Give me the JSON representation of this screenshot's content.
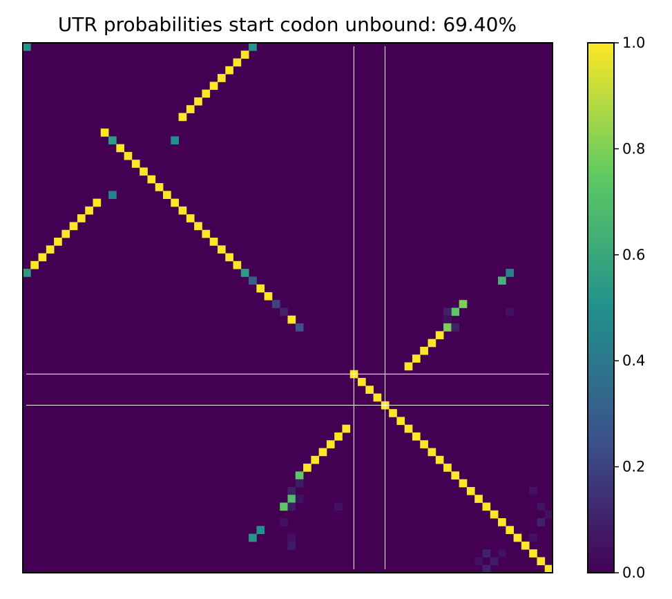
{
  "chart_data": {
    "type": "heatmap",
    "title": "UTR probabilities start codon unbound: 69.40%",
    "xlabel": "",
    "ylabel": "",
    "grid_size": 68,
    "colormap": "viridis",
    "colormap_stops": [
      "#440154",
      "#3b528b",
      "#21918c",
      "#5ec962",
      "#fde725"
    ],
    "colorbar": {
      "range": [
        0,
        1
      ],
      "ticks": [
        0.0,
        0.2,
        0.4,
        0.6,
        0.8,
        1.0
      ],
      "tick_labels": [
        "0.0",
        "0.2",
        "0.4",
        "0.6",
        "0.8",
        "1.0"
      ]
    },
    "guide_lines": {
      "rows": [
        42.5,
        46.5
      ],
      "cols": [
        42.5,
        46.5
      ],
      "color": "#ffffff"
    },
    "cells": [
      [
        0,
        0,
        0.52
      ],
      [
        0,
        29,
        0.52
      ],
      [
        1,
        28,
        1.0
      ],
      [
        2,
        27,
        1.0
      ],
      [
        3,
        26,
        1.0
      ],
      [
        4,
        25,
        1.0
      ],
      [
        5,
        24,
        1.0
      ],
      [
        6,
        23,
        1.0
      ],
      [
        7,
        22,
        1.0
      ],
      [
        8,
        21,
        1.0
      ],
      [
        9,
        20,
        1.0
      ],
      [
        11,
        10,
        1.0
      ],
      [
        12,
        11,
        0.55
      ],
      [
        12,
        19,
        0.5
      ],
      [
        13,
        12,
        1.0
      ],
      [
        14,
        13,
        1.0
      ],
      [
        15,
        14,
        1.0
      ],
      [
        16,
        15,
        1.0
      ],
      [
        17,
        16,
        1.0
      ],
      [
        18,
        17,
        1.0
      ],
      [
        19,
        18,
        1.0
      ],
      [
        19,
        11,
        0.45
      ],
      [
        20,
        19,
        1.0
      ],
      [
        20,
        9,
        1.0
      ],
      [
        21,
        20,
        1.0
      ],
      [
        21,
        8,
        1.0
      ],
      [
        22,
        21,
        1.0
      ],
      [
        22,
        7,
        1.0
      ],
      [
        23,
        22,
        1.0
      ],
      [
        23,
        6,
        1.0
      ],
      [
        24,
        23,
        1.0
      ],
      [
        24,
        5,
        1.0
      ],
      [
        25,
        24,
        1.0
      ],
      [
        25,
        4,
        1.0
      ],
      [
        26,
        25,
        1.0
      ],
      [
        26,
        3,
        1.0
      ],
      [
        27,
        26,
        1.0
      ],
      [
        27,
        2,
        1.0
      ],
      [
        28,
        27,
        1.0
      ],
      [
        28,
        1,
        1.0
      ],
      [
        29,
        28,
        0.55
      ],
      [
        29,
        0,
        0.55
      ],
      [
        29,
        62,
        0.45
      ],
      [
        30,
        29,
        0.3
      ],
      [
        30,
        61,
        0.65
      ],
      [
        31,
        30,
        1.0
      ],
      [
        32,
        31,
        1.0
      ],
      [
        33,
        32,
        0.2
      ],
      [
        33,
        56,
        0.8
      ],
      [
        34,
        33,
        0.1
      ],
      [
        34,
        55,
        0.75
      ],
      [
        34,
        54,
        0.1
      ],
      [
        34,
        62,
        0.05
      ],
      [
        35,
        34,
        1.0
      ],
      [
        35,
        54,
        0.05
      ],
      [
        36,
        35,
        0.25
      ],
      [
        36,
        54,
        0.8
      ],
      [
        36,
        55,
        0.1
      ],
      [
        37,
        53,
        1.0
      ],
      [
        38,
        52,
        1.0
      ],
      [
        39,
        51,
        1.0
      ],
      [
        40,
        50,
        1.0
      ],
      [
        41,
        49,
        1.0
      ],
      [
        42,
        42,
        1.0
      ],
      [
        43,
        43,
        1.0
      ],
      [
        44,
        44,
        1.0
      ],
      [
        45,
        45,
        1.0
      ],
      [
        46,
        46,
        1.0
      ],
      [
        47,
        47,
        1.0
      ],
      [
        48,
        48,
        1.0
      ],
      [
        49,
        49,
        1.0
      ],
      [
        50,
        50,
        1.0
      ],
      [
        51,
        51,
        1.0
      ],
      [
        52,
        52,
        1.0
      ],
      [
        53,
        53,
        1.0
      ],
      [
        54,
        54,
        1.0
      ],
      [
        55,
        55,
        1.0
      ],
      [
        56,
        56,
        1.0
      ],
      [
        57,
        57,
        1.0
      ],
      [
        58,
        58,
        1.0
      ],
      [
        59,
        59,
        1.0
      ],
      [
        60,
        60,
        1.0
      ],
      [
        61,
        61,
        1.0
      ],
      [
        62,
        62,
        1.0
      ],
      [
        63,
        63,
        1.0
      ],
      [
        64,
        64,
        1.0
      ],
      [
        65,
        65,
        1.0
      ],
      [
        66,
        66,
        1.0
      ],
      [
        67,
        67,
        1.0
      ],
      [
        49,
        41,
        1.0
      ],
      [
        50,
        40,
        1.0
      ],
      [
        51,
        39,
        1.0
      ],
      [
        52,
        38,
        1.0
      ],
      [
        53,
        37,
        1.0
      ],
      [
        54,
        36,
        1.0
      ],
      [
        55,
        35,
        0.75
      ],
      [
        56,
        35,
        0.08
      ],
      [
        57,
        34,
        0.1
      ],
      [
        58,
        34,
        0.7
      ],
      [
        58,
        35,
        0.05
      ],
      [
        59,
        33,
        0.75
      ],
      [
        59,
        34,
        0.08
      ],
      [
        59,
        40,
        0.05
      ],
      [
        61,
        33,
        0.05
      ],
      [
        62,
        30,
        0.5
      ],
      [
        63,
        29,
        0.52
      ],
      [
        63,
        34,
        0.05
      ],
      [
        64,
        34,
        0.08
      ],
      [
        57,
        65,
        0.05
      ],
      [
        59,
        66,
        0.05
      ],
      [
        60,
        67,
        0.05
      ],
      [
        61,
        66,
        0.1
      ],
      [
        63,
        65,
        0.05
      ],
      [
        65,
        61,
        0.05
      ],
      [
        65,
        59,
        0.1
      ],
      [
        66,
        60,
        0.08
      ],
      [
        66,
        58,
        0.05
      ],
      [
        67,
        59,
        0.1
      ]
    ]
  }
}
